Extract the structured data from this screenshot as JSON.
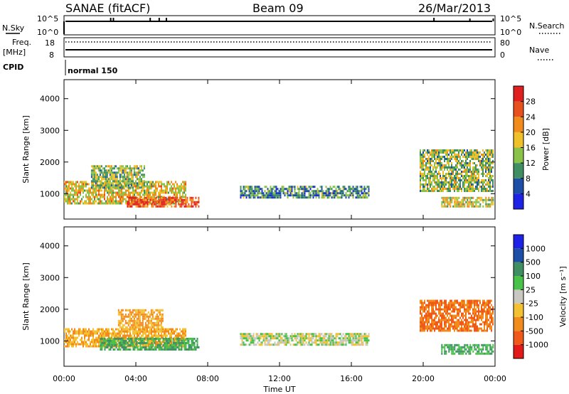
{
  "header": {
    "station": "SANAE (fitACF)",
    "beam": "Beam 09",
    "date": "26/Mar/2013"
  },
  "top_panels": {
    "nsky_label": "N.Sky",
    "nsky_ticks": [
      "10^5",
      "10^0"
    ],
    "nsearch_label": "N.Search",
    "nsearch_ticks": [
      "10^5",
      "10^0"
    ],
    "freq_label_line1": "Freq.",
    "freq_label_line2": "[MHz]",
    "freq_ticks": [
      "18",
      "8"
    ],
    "nave_label": "Nave",
    "nave_ticks": [
      "80",
      "0"
    ],
    "cpid_label": "CPID",
    "cpid_text": "normal 150"
  },
  "x_axis": {
    "label": "Time UT",
    "ticks": [
      "00:00",
      "04:00",
      "08:00",
      "12:00",
      "16:00",
      "20:00",
      "00:00"
    ]
  },
  "colors": {
    "power": [
      "#1e22e6",
      "#1e4fa8",
      "#3f8f63",
      "#8bc34a",
      "#f0c02a",
      "#f08b1c",
      "#e8501e",
      "#e02020"
    ],
    "velocity": [
      "#e21a1a",
      "#ef5a1a",
      "#f08b1c",
      "#f3c132",
      "#c8c8c0",
      "#48c248",
      "#3f8f63",
      "#1e4fa8",
      "#1e22e6"
    ]
  },
  "chart_data": [
    {
      "type": "heatmap",
      "title": "Power",
      "xlabel": "Time UT",
      "ylabel": "Slant Range [km]",
      "xlim": [
        0,
        24
      ],
      "ylim": [
        200,
        4600
      ],
      "yticks": [
        "1000",
        "2000",
        "3000",
        "4000"
      ],
      "colorbar_label": "Power [dB]",
      "colorbar_ticks": [
        "4",
        "8",
        "12",
        "16",
        "20",
        "24",
        "28"
      ],
      "colorbar_range": [
        0,
        32
      ],
      "regions": [
        {
          "t": [
            0,
            6.8
          ],
          "r": [
            700,
            1400
          ],
          "level": 18
        },
        {
          "t": [
            3.5,
            7.5
          ],
          "r": [
            600,
            900
          ],
          "level": 26
        },
        {
          "t": [
            1.5,
            4.5
          ],
          "r": [
            1200,
            1900
          ],
          "level": 14
        },
        {
          "t": [
            9.8,
            17.0
          ],
          "r": [
            850,
            1250
          ],
          "level": 10
        },
        {
          "t": [
            19.8,
            23.9
          ],
          "r": [
            1100,
            2400
          ],
          "level": 14
        },
        {
          "t": [
            21.0,
            23.9
          ],
          "r": [
            600,
            900
          ],
          "level": 17
        }
      ]
    },
    {
      "type": "heatmap",
      "title": "Velocity",
      "xlabel": "Time UT",
      "ylabel": "Slant Range [km]",
      "xlim": [
        0,
        24
      ],
      "ylim": [
        200,
        4600
      ],
      "yticks": [
        "1000",
        "2000",
        "3000",
        "4000"
      ],
      "colorbar_label": "Velocity [m s⁻¹]",
      "colorbar_ticks": [
        "1000",
        "500",
        "100",
        "25",
        "-25",
        "-100",
        "-500",
        "-1000"
      ],
      "regions": [
        {
          "t": [
            0,
            6.8
          ],
          "r": [
            800,
            1400
          ],
          "level": -100
        },
        {
          "t": [
            2.0,
            7.5
          ],
          "r": [
            700,
            1100
          ],
          "level": 100
        },
        {
          "t": [
            3.0,
            5.5
          ],
          "r": [
            1300,
            2000
          ],
          "level": -100
        },
        {
          "t": [
            9.8,
            17.0
          ],
          "r": [
            850,
            1250
          ],
          "level": 0
        },
        {
          "t": [
            19.8,
            23.9
          ],
          "r": [
            1300,
            2300
          ],
          "level": -500
        },
        {
          "t": [
            21.0,
            23.9
          ],
          "r": [
            600,
            900
          ],
          "level": 100
        }
      ]
    }
  ]
}
